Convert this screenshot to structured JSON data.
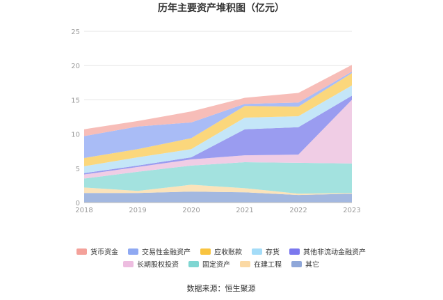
{
  "chart_data": {
    "type": "area",
    "stacked": true,
    "title": "历年主要资产堆积图（亿元）",
    "x": [
      "2018",
      "2019",
      "2020",
      "2021",
      "2022",
      "2023"
    ],
    "ylim": [
      0,
      25
    ],
    "yticks": [
      "0",
      "5",
      "10",
      "15",
      "20",
      "25"
    ],
    "grid": true,
    "legend_position": "bottom",
    "series": [
      {
        "name": "其它",
        "color": "#a3b8e0",
        "values": [
          1.4,
          1.4,
          1.6,
          1.5,
          1.1,
          1.3
        ]
      },
      {
        "name": "在建工程",
        "color": "#fbe3ba",
        "values": [
          0.8,
          0.3,
          1.0,
          0.6,
          0.2,
          0.1
        ]
      },
      {
        "name": "固定资产",
        "color": "#a3e2df",
        "values": [
          1.3,
          2.8,
          2.8,
          3.8,
          4.5,
          4.3
        ]
      },
      {
        "name": "长期股权投资",
        "color": "#f0cde5",
        "values": [
          0.6,
          0.7,
          0.9,
          1.0,
          1.2,
          9.3
        ]
      },
      {
        "name": "其他非流动金融资产",
        "color": "#9a9cf0",
        "values": [
          0.2,
          0.2,
          0.3,
          3.8,
          4.0,
          0.6
        ]
      },
      {
        "name": "存货",
        "color": "#c4e6f8",
        "values": [
          1.0,
          1.2,
          1.2,
          1.7,
          1.6,
          1.5
        ]
      },
      {
        "name": "应收账款",
        "color": "#fbd77c",
        "values": [
          1.2,
          1.2,
          1.6,
          1.7,
          1.4,
          1.8
        ]
      },
      {
        "name": "交易性金融资产",
        "color": "#a9bcf6",
        "values": [
          3.2,
          3.3,
          2.3,
          0.3,
          0.6,
          0.2
        ]
      },
      {
        "name": "货币资金",
        "color": "#f7bdb8",
        "values": [
          1.0,
          0.8,
          1.6,
          0.9,
          1.4,
          1.0
        ]
      }
    ],
    "legend": [
      {
        "name": "货币资金",
        "color": "#f4a19a"
      },
      {
        "name": "交易性金融资产",
        "color": "#8fa9f2"
      },
      {
        "name": "应收账款",
        "color": "#f9c440"
      },
      {
        "name": "存货",
        "color": "#a4dcf8"
      },
      {
        "name": "其他非流动金融资产",
        "color": "#7b78ee"
      },
      {
        "name": "长期股权投资",
        "color": "#edbde0"
      },
      {
        "name": "固定资产",
        "color": "#7fd6d2"
      },
      {
        "name": "在建工程",
        "color": "#fbd9a4"
      },
      {
        "name": "其它",
        "color": "#8fa7d9"
      }
    ],
    "source": "数据来源：恒生聚源"
  }
}
